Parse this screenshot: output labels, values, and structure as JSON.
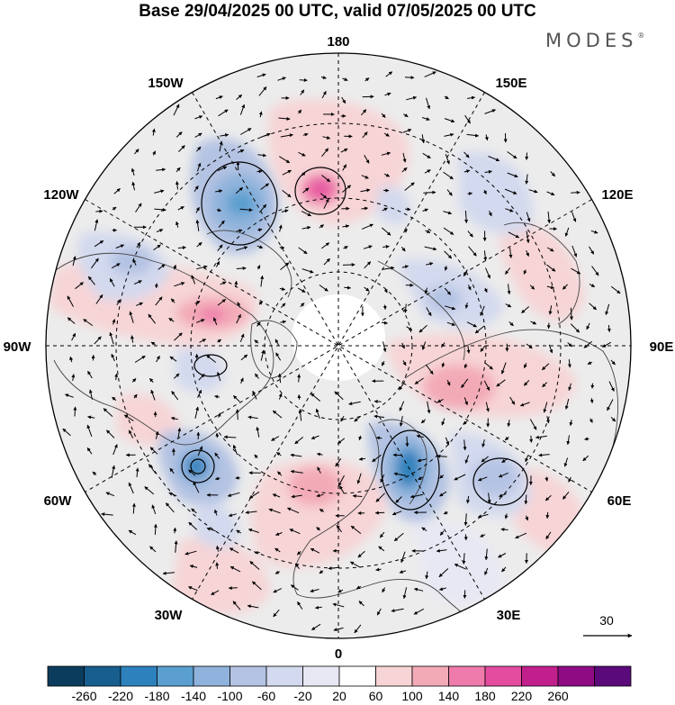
{
  "title": "Base 29/04/2025 00 UTC, valid 07/05/2025 00 UTC",
  "logo": "MODES",
  "logo_mark": "®",
  "longitude_labels": {
    "lon_180": "180",
    "lon_150e": "150E",
    "lon_120e": "120E",
    "lon_90e": "90E",
    "lon_60e": "60E",
    "lon_30e": "30E",
    "lon_0": "0",
    "lon_30w": "30W",
    "lon_60w": "60W",
    "lon_90w": "90W",
    "lon_120w": "120W",
    "lon_150w": "150W"
  },
  "wind_reference": {
    "label": "30"
  },
  "colorbar": {
    "tick_labels": [
      "-260",
      "-220",
      "-180",
      "-140",
      "-100",
      "-60",
      "-20",
      "20",
      "60",
      "100",
      "140",
      "180",
      "220",
      "260"
    ],
    "colors": [
      "#0b3c5d",
      "#175e8f",
      "#2d82bd",
      "#5a9fcf",
      "#8fb3dc",
      "#b4c3e3",
      "#d3d9ee",
      "#e8e8f4",
      "#ffffff",
      "#f7d4d6",
      "#f3aab7",
      "#ee7bab",
      "#e34c9f",
      "#c1208c",
      "#8f0b84",
      "#5a0a7a"
    ]
  },
  "anomaly_colors": {
    "strong_negative": "#175e8f",
    "negative": "#8fb3dc",
    "weak_negative": "#d3d9ee",
    "neutral": "#ececec",
    "weak_positive": "#f7d4d6",
    "positive": "#f3aab7",
    "strong_positive": "#e34c9f"
  },
  "icons": {
    "wind_arrow": "arrow-icon",
    "north_pole": "pole-area"
  }
}
